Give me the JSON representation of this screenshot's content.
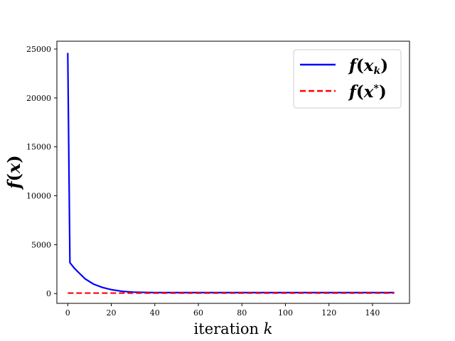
{
  "chart_data": {
    "type": "line",
    "title": "",
    "xlabel": "iteration",
    "xlabel_var": "k",
    "ylabel": "f(x)",
    "xlim": [
      -5,
      157
    ],
    "ylim": [
      -1000,
      25800
    ],
    "xticks": [
      0,
      20,
      40,
      60,
      80,
      100,
      120,
      140
    ],
    "yticks": [
      0,
      5000,
      10000,
      15000,
      20000,
      25000
    ],
    "grid": false,
    "legend": {
      "position": "top-right",
      "labels": [
        "f(x_k)",
        "f(x*)"
      ]
    },
    "series": [
      {
        "name": "f(x_k)",
        "color": "#0000ff",
        "style": "solid",
        "x": [
          0,
          1,
          3,
          5,
          8,
          12,
          16,
          20,
          25,
          30,
          35,
          40,
          50,
          60,
          80,
          100,
          120,
          150
        ],
        "y": [
          24600,
          3150,
          2600,
          2150,
          1500,
          950,
          620,
          400,
          230,
          150,
          120,
          105,
          100,
          100,
          100,
          100,
          100,
          100
        ]
      },
      {
        "name": "f(x*)",
        "color": "#ff0000",
        "style": "dashed",
        "x": [
          0,
          150
        ],
        "y": [
          50,
          50
        ]
      }
    ]
  }
}
